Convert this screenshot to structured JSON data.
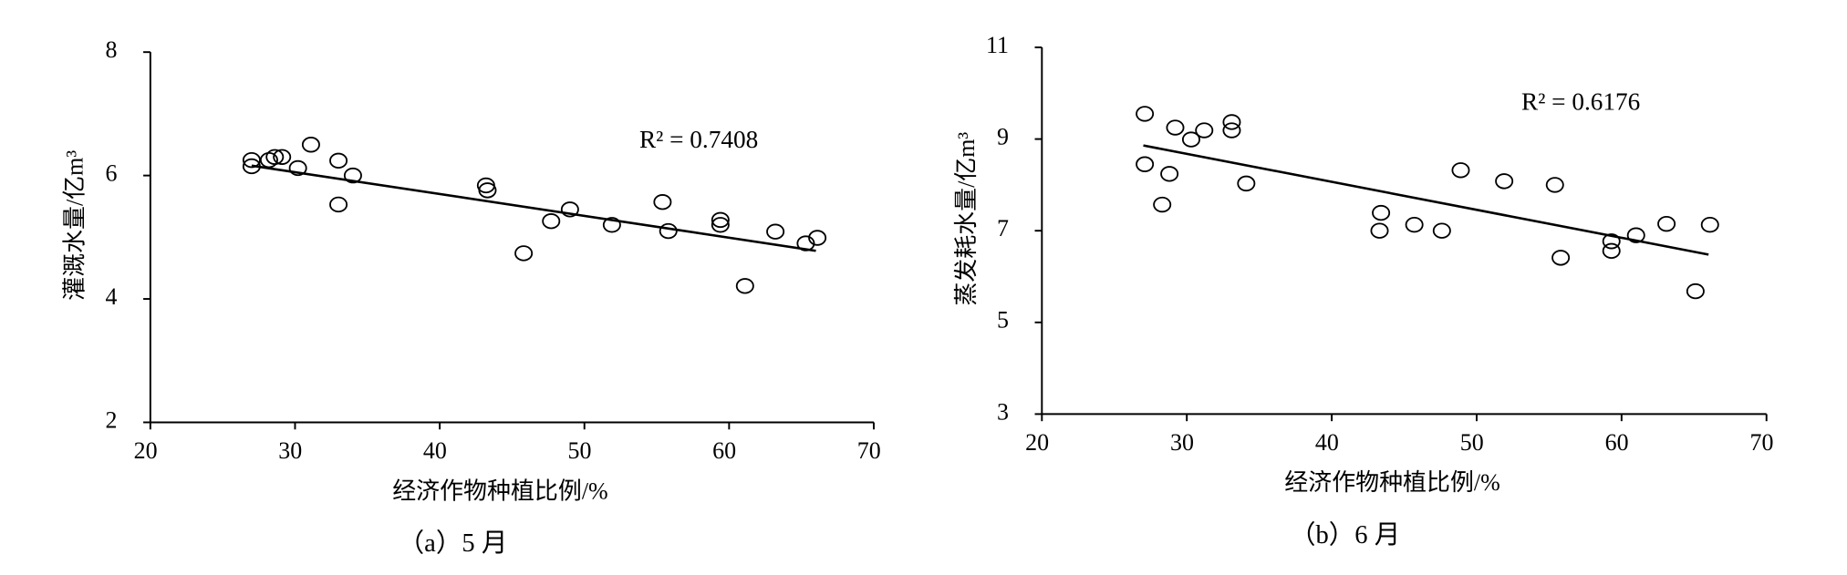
{
  "chart_data": [
    {
      "type": "scatter",
      "caption": "（a）5 月",
      "x_label": "经济作物种植比例/%",
      "y_label": "灌溉水量/亿m³",
      "annotation": "R² = 0.7408",
      "xlim": [
        20,
        70
      ],
      "xticks": [
        20,
        30,
        40,
        50,
        60,
        70
      ],
      "ylim": [
        2,
        8
      ],
      "yticks": [
        2,
        4,
        6,
        8
      ],
      "color": "#000000",
      "x": [
        27.0,
        27.0,
        28.2,
        28.6,
        29.1,
        30.2,
        31.1,
        33.0,
        33.0,
        34.0,
        43.2,
        43.3,
        45.8,
        47.7,
        49.0,
        51.9,
        55.4,
        55.8,
        59.4,
        59.4,
        61.1,
        63.2,
        65.3,
        66.1
      ],
      "values": [
        6.25,
        6.15,
        6.25,
        6.3,
        6.3,
        6.12,
        6.5,
        6.24,
        5.53,
        6.0,
        5.84,
        5.76,
        4.74,
        5.26,
        5.45,
        5.2,
        5.57,
        5.1,
        5.28,
        5.2,
        4.21,
        5.09,
        4.9,
        4.99
      ],
      "trendline": {
        "x": [
          27,
          66
        ],
        "values": [
          6.16,
          4.78
        ]
      }
    },
    {
      "type": "scatter",
      "caption": "（b）6 月",
      "x_label": "经济作物种植比例/%",
      "y_label": "蒸发耗水量/亿m³",
      "annotation": "R² = 0.6176",
      "xlim": [
        20,
        70
      ],
      "xticks": [
        20,
        30,
        40,
        50,
        60,
        70
      ],
      "ylim": [
        3,
        11
      ],
      "yticks": [
        3,
        5,
        7,
        9,
        11
      ],
      "color": "#000000",
      "x": [
        27.1,
        27.1,
        28.3,
        28.8,
        29.2,
        30.3,
        31.2,
        33.1,
        33.1,
        34.1,
        43.4,
        43.3,
        45.7,
        47.6,
        48.9,
        51.9,
        55.4,
        55.8,
        59.3,
        59.3,
        61.0,
        63.1,
        65.1,
        66.1
      ],
      "values": [
        9.55,
        8.45,
        7.57,
        8.24,
        9.25,
        8.99,
        9.19,
        9.37,
        9.19,
        8.03,
        7.39,
        7.0,
        7.13,
        7.0,
        8.32,
        8.08,
        8.0,
        6.41,
        6.77,
        6.56,
        6.9,
        7.15,
        5.68,
        7.13
      ],
      "trendline": {
        "x": [
          27,
          66
        ],
        "values": [
          8.86,
          6.48
        ]
      }
    }
  ]
}
